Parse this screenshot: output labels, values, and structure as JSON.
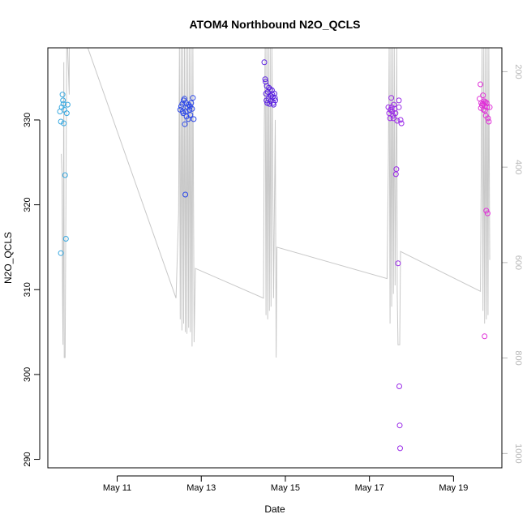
{
  "chart_data": {
    "type": "scatter",
    "title": "ATOM4 Northbound N2O_QCLS",
    "xlabel": "Date",
    "ylabel": "N2O_QCLS",
    "x_range_days": [
      9.35,
      20.15
    ],
    "x_ticks": [
      {
        "label": "May 11",
        "day": 11
      },
      {
        "label": "May 13",
        "day": 13
      },
      {
        "label": "May 15",
        "day": 15
      },
      {
        "label": "May 17",
        "day": 17
      },
      {
        "label": "May 19",
        "day": 19
      }
    ],
    "ylim": [
      289,
      338.5
    ],
    "y_ticks": [
      290,
      300,
      310,
      320,
      330
    ],
    "y2_label": "",
    "y2_range": [
      1030,
      150
    ],
    "y2_ticks": [
      200,
      400,
      600,
      800,
      1000
    ],
    "grid": false,
    "colors": {
      "flight1": "#39a9e0",
      "flight2": "#2a46e8",
      "flight3": "#5a20e0",
      "flight4": "#9a2ae8",
      "flight5": "#e030d8",
      "altitude_line": "#c8c8c8"
    },
    "series": [
      {
        "color_key": "flight1",
        "points": [
          [
            9.64,
            331.0
          ],
          [
            9.66,
            329.8
          ],
          [
            9.68,
            331.5
          ],
          [
            9.7,
            333.0
          ],
          [
            9.71,
            332.3
          ],
          [
            9.72,
            331.9
          ],
          [
            9.73,
            329.6
          ],
          [
            9.74,
            331.2
          ],
          [
            9.76,
            323.5
          ],
          [
            9.78,
            316.0
          ],
          [
            9.8,
            330.8
          ],
          [
            9.82,
            331.8
          ],
          [
            9.66,
            314.3
          ]
        ]
      },
      {
        "color_key": "flight2",
        "points": [
          [
            12.5,
            331.2
          ],
          [
            12.52,
            331.6
          ],
          [
            12.55,
            331.9
          ],
          [
            12.57,
            330.8
          ],
          [
            12.58,
            332.3
          ],
          [
            12.6,
            332.5
          ],
          [
            12.61,
            329.5
          ],
          [
            12.62,
            321.2
          ],
          [
            12.63,
            331.0
          ],
          [
            12.65,
            330.4
          ],
          [
            12.67,
            331.5
          ],
          [
            12.69,
            330.1
          ],
          [
            12.7,
            331.8
          ],
          [
            12.72,
            331.2
          ],
          [
            12.74,
            330.6
          ],
          [
            12.76,
            332.0
          ],
          [
            12.78,
            331.3
          ],
          [
            12.8,
            332.6
          ],
          [
            12.82,
            330.1
          ],
          [
            12.56,
            331.0
          ],
          [
            12.64,
            332.0
          ],
          [
            12.73,
            331.6
          ]
        ]
      },
      {
        "color_key": "flight3",
        "points": [
          [
            14.5,
            336.8
          ],
          [
            14.52,
            334.8
          ],
          [
            14.54,
            333.1
          ],
          [
            14.55,
            332.3
          ],
          [
            14.56,
            334.0
          ],
          [
            14.58,
            333.3
          ],
          [
            14.6,
            332.5
          ],
          [
            14.62,
            331.9
          ],
          [
            14.64,
            333.6
          ],
          [
            14.66,
            332.8
          ],
          [
            14.68,
            333.5
          ],
          [
            14.7,
            332.7
          ],
          [
            14.72,
            331.8
          ],
          [
            14.74,
            333.1
          ],
          [
            14.76,
            332.3
          ],
          [
            14.53,
            334.5
          ],
          [
            14.57,
            332.0
          ],
          [
            14.61,
            333.8
          ],
          [
            14.65,
            332.2
          ],
          [
            14.69,
            333.0
          ],
          [
            14.71,
            332.0
          ],
          [
            14.75,
            332.6
          ]
        ]
      },
      {
        "color_key": "flight4",
        "points": [
          [
            17.45,
            331.5
          ],
          [
            17.47,
            330.8
          ],
          [
            17.49,
            330.2
          ],
          [
            17.5,
            331.2
          ],
          [
            17.52,
            332.6
          ],
          [
            17.54,
            331.0
          ],
          [
            17.56,
            330.5
          ],
          [
            17.58,
            331.8
          ],
          [
            17.6,
            331.3
          ],
          [
            17.62,
            330.8
          ],
          [
            17.63,
            323.6
          ],
          [
            17.64,
            324.2
          ],
          [
            17.66,
            329.9
          ],
          [
            17.68,
            313.1
          ],
          [
            17.7,
            331.5
          ],
          [
            17.71,
            298.6
          ],
          [
            17.72,
            294.0
          ],
          [
            17.73,
            291.3
          ],
          [
            17.74,
            330.0
          ],
          [
            17.76,
            329.6
          ],
          [
            17.7,
            332.3
          ],
          [
            17.53,
            331.5
          ],
          [
            17.57,
            330.2
          ]
        ]
      },
      {
        "color_key": "flight5",
        "points": [
          [
            19.62,
            332.5
          ],
          [
            19.64,
            334.2
          ],
          [
            19.66,
            332.0
          ],
          [
            19.68,
            331.7
          ],
          [
            19.7,
            332.9
          ],
          [
            19.72,
            331.9
          ],
          [
            19.73,
            332.2
          ],
          [
            19.74,
            331.6
          ],
          [
            19.75,
            331.1
          ],
          [
            19.76,
            332.1
          ],
          [
            19.77,
            330.5
          ],
          [
            19.78,
            319.3
          ],
          [
            19.79,
            332.0
          ],
          [
            19.8,
            331.5
          ],
          [
            19.81,
            319.0
          ],
          [
            19.82,
            330.2
          ],
          [
            19.84,
            329.8
          ],
          [
            19.86,
            331.5
          ],
          [
            19.74,
            304.5
          ],
          [
            19.65,
            331.4
          ],
          [
            19.69,
            331.9
          ],
          [
            19.71,
            331.2
          ]
        ]
      }
    ],
    "altitude_line": [
      [
        9.67,
        326.0
      ],
      [
        9.69,
        323.0
      ],
      [
        9.7,
        310.0
      ],
      [
        9.71,
        303.5
      ],
      [
        9.72,
        320.0
      ],
      [
        9.73,
        336.8
      ],
      [
        9.74,
        302.0
      ],
      [
        9.76,
        302.0
      ],
      [
        9.78,
        320.0
      ],
      [
        9.8,
        338.5
      ],
      [
        9.82,
        338.5
      ],
      [
        9.86,
        333.0
      ],
      [
        9.86,
        338.5
      ],
      [
        10.3,
        338.5
      ],
      [
        12.4,
        309.0
      ],
      [
        12.46,
        319.0
      ],
      [
        12.48,
        338.5
      ],
      [
        12.5,
        306.5
      ],
      [
        12.52,
        338.5
      ],
      [
        12.54,
        305.2
      ],
      [
        12.56,
        338.5
      ],
      [
        12.58,
        306.0
      ],
      [
        12.6,
        338.5
      ],
      [
        12.62,
        305.0
      ],
      [
        12.64,
        338.5
      ],
      [
        12.66,
        304.8
      ],
      [
        12.68,
        338.5
      ],
      [
        12.7,
        305.5
      ],
      [
        12.72,
        338.5
      ],
      [
        12.74,
        305.0
      ],
      [
        12.76,
        338.5
      ],
      [
        12.78,
        303.3
      ],
      [
        12.8,
        338.5
      ],
      [
        12.83,
        303.8
      ],
      [
        12.86,
        312.5
      ],
      [
        14.48,
        309.0
      ],
      [
        14.5,
        330.0
      ],
      [
        14.52,
        338.5
      ],
      [
        14.54,
        307.0
      ],
      [
        14.56,
        338.5
      ],
      [
        14.58,
        306.5
      ],
      [
        14.6,
        338.5
      ],
      [
        14.62,
        307.5
      ],
      [
        14.64,
        338.5
      ],
      [
        14.66,
        308.0
      ],
      [
        14.68,
        338.5
      ],
      [
        14.72,
        309.0
      ],
      [
        14.76,
        330.0
      ],
      [
        14.78,
        302.0
      ],
      [
        14.8,
        315.0
      ],
      [
        17.42,
        311.3
      ],
      [
        17.45,
        325.0
      ],
      [
        17.47,
        338.5
      ],
      [
        17.49,
        306.0
      ],
      [
        17.51,
        338.5
      ],
      [
        17.53,
        308.0
      ],
      [
        17.55,
        338.5
      ],
      [
        17.57,
        309.5
      ],
      [
        17.59,
        338.5
      ],
      [
        17.61,
        310.5
      ],
      [
        17.63,
        324.0
      ],
      [
        17.65,
        338.5
      ],
      [
        17.66,
        310.0
      ],
      [
        17.68,
        303.5
      ],
      [
        17.72,
        303.5
      ],
      [
        17.74,
        314.5
      ],
      [
        19.64,
        309.8
      ],
      [
        19.66,
        325.0
      ],
      [
        19.68,
        338.5
      ],
      [
        19.7,
        307.5
      ],
      [
        19.72,
        338.5
      ],
      [
        19.74,
        306.0
      ],
      [
        19.76,
        338.5
      ],
      [
        19.78,
        306.5
      ],
      [
        19.8,
        338.5
      ],
      [
        19.82,
        307.0
      ],
      [
        19.84,
        338.5
      ],
      [
        19.86,
        313.5
      ]
    ]
  }
}
